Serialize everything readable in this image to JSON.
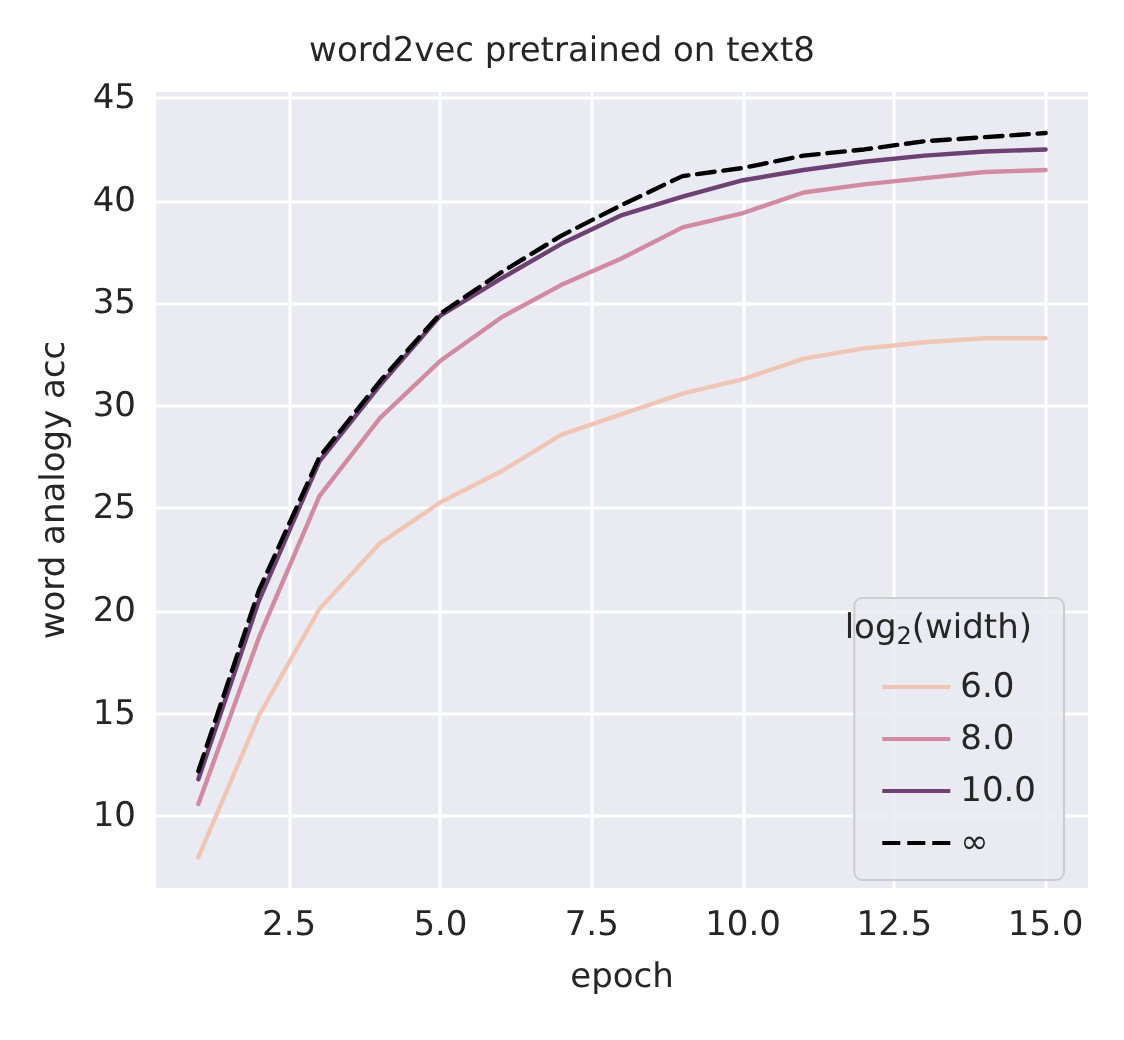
{
  "chart_data": {
    "type": "line",
    "title": "word2vec pretrained on text8",
    "xlabel": "epoch",
    "ylabel": "word analogy acc",
    "legend_title": "log$_{2}$(width)",
    "x": [
      1,
      2,
      3,
      4,
      5,
      6,
      7,
      8,
      9,
      10,
      11,
      12,
      13,
      14,
      15
    ],
    "series": [
      {
        "name": "6.0",
        "color": "#efc6b6",
        "values": [
          8.0,
          14.9,
          20.1,
          23.3,
          25.3,
          26.8,
          28.6,
          29.6,
          30.6,
          31.3,
          32.3,
          32.8,
          33.1,
          33.3,
          33.3
        ]
      },
      {
        "name": "8.0",
        "color": "#d08aa2",
        "values": [
          10.6,
          18.7,
          25.6,
          29.4,
          32.2,
          34.3,
          35.9,
          37.2,
          38.7,
          39.4,
          40.4,
          40.8,
          41.1,
          41.4,
          41.5
        ]
      },
      {
        "name": "10.0",
        "color": "#6d4172",
        "values": [
          11.8,
          20.5,
          27.3,
          31.0,
          34.4,
          36.2,
          37.9,
          39.3,
          40.2,
          41.0,
          41.5,
          41.9,
          42.2,
          42.4,
          42.5
        ]
      },
      {
        "name": "∞",
        "color": "#000000",
        "line_style": "dashed",
        "values": [
          12.2,
          21.0,
          27.5,
          31.2,
          34.5,
          36.5,
          38.3,
          39.8,
          41.2,
          41.6,
          42.2,
          42.5,
          42.9,
          43.1,
          43.3
        ]
      }
    ],
    "xlim": [
      0.3,
      15.7
    ],
    "xticks": [
      2.5,
      {
        "value": 5,
        "label": "5.0"
      },
      7.5,
      {
        "value": 10,
        "label": "10.0"
      },
      12.5,
      {
        "value": 15,
        "label": "15.0"
      }
    ],
    "ylim": [
      6.5,
      45.3
    ],
    "yticks": [
      10,
      15,
      20,
      25,
      30,
      35,
      40,
      45
    ],
    "grid": true,
    "legend": "bottom right",
    "line_style": "solid",
    "marker": "none"
  }
}
